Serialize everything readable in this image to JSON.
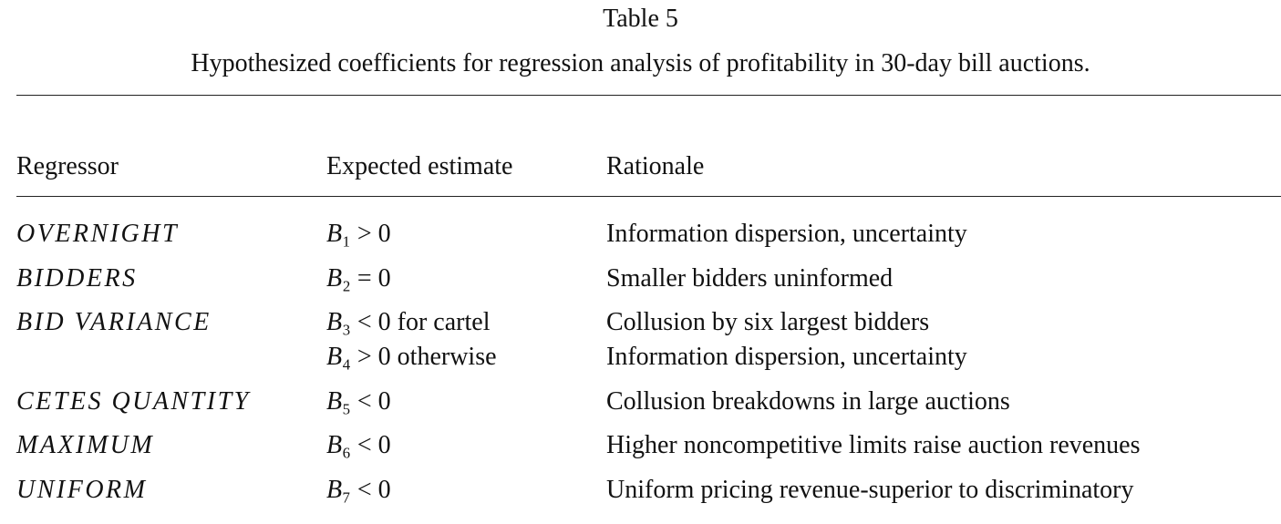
{
  "table_number": "Table 5",
  "caption": "Hypothesized coefficients for regression analysis of profitability in 30-day bill auctions.",
  "table": {
    "headers": [
      "Regressor",
      "Expected estimate",
      "Rationale"
    ],
    "rows": [
      {
        "regressor": "OVERNIGHT",
        "lines": [
          {
            "estimate": "B₁ > 0",
            "rationale": "Information dispersion, uncertainty"
          }
        ]
      },
      {
        "regressor": "BIDDERS",
        "lines": [
          {
            "estimate": "B₂ = 0",
            "rationale": "Smaller bidders uninformed"
          }
        ]
      },
      {
        "regressor": "BID VARIANCE",
        "lines": [
          {
            "estimate": "B₃ < 0 for cartel",
            "rationale": "Collusion by six largest bidders"
          },
          {
            "estimate": "B₄ > 0 otherwise",
            "rationale": "Information dispersion, uncertainty"
          }
        ]
      },
      {
        "regressor": "CETES QUANTITY",
        "lines": [
          {
            "estimate": "B₅ < 0",
            "rationale": "Collusion breakdowns in large auctions"
          }
        ]
      },
      {
        "regressor": "MAXIMUM",
        "lines": [
          {
            "estimate": "B₆ < 0",
            "rationale": "Higher noncompetitive limits raise auction revenues"
          }
        ]
      },
      {
        "regressor": "UNIFORM",
        "lines": [
          {
            "estimate": "B₇ < 0",
            "rationale": "Uniform pricing revenue-superior to discriminatory"
          }
        ]
      }
    ]
  }
}
